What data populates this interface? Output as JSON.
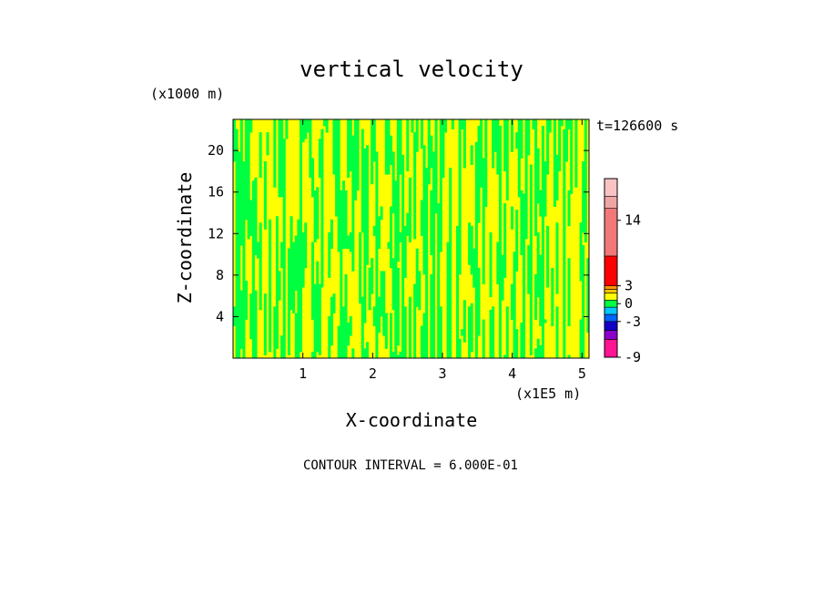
{
  "chart_data": {
    "type": "heatmap",
    "title": "vertical velocity",
    "xlabel": "X-coordinate",
    "ylabel": "Z-coordinate",
    "x_unit": "(x1E5 m)",
    "y_unit": "(x1000 m)",
    "time_label": "t=126600 s",
    "contour_interval": "CONTOUR INTERVAL = 6.000E-01",
    "xlim": [
      0,
      5.1
    ],
    "ylim": [
      0,
      23
    ],
    "x_ticks": [
      1,
      2,
      3,
      4,
      5
    ],
    "y_ticks": [
      4,
      8,
      12,
      16,
      20
    ],
    "colorbar": {
      "ticks": [
        {
          "value": 14,
          "label": "14"
        },
        {
          "value": 3,
          "label": "3"
        },
        {
          "value": 0,
          "label": "0"
        },
        {
          "value": -3,
          "label": "-3"
        },
        {
          "value": -9,
          "label": "-9"
        }
      ],
      "levels": [
        {
          "color": "#ff1493"
        },
        {
          "color": "#8a00c8"
        },
        {
          "color": "#1500c8"
        },
        {
          "color": "#0064ff"
        },
        {
          "color": "#00c8ff"
        },
        {
          "color": "#00ff40"
        },
        {
          "color": "#ffff00"
        },
        {
          "color": "#ffc800"
        },
        {
          "color": "#ff9600"
        },
        {
          "color": "#ff0000"
        },
        {
          "color": "#f07878"
        },
        {
          "color": "#f0a5a5"
        },
        {
          "color": "#fac3c3"
        }
      ]
    },
    "field_colors": {
      "negative": "#00ff40",
      "positive": "#ffff00"
    }
  }
}
